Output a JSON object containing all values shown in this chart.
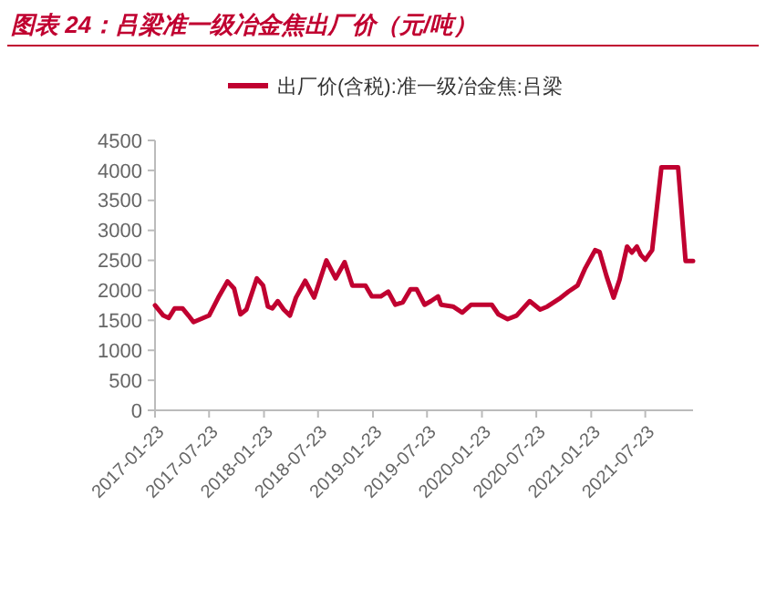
{
  "chart_data": {
    "type": "line",
    "title": "图表 24：吕梁准一级冶金焦出厂价（元/吨）",
    "x": [
      "2017-01-23",
      "2017-02-20",
      "2017-03-10",
      "2017-03-30",
      "2017-04-25",
      "2017-05-15",
      "2017-06-01",
      "2017-07-23",
      "2017-08-23",
      "2017-09-23",
      "2017-10-15",
      "2017-11-05",
      "2017-11-25",
      "2017-12-30",
      "2018-01-20",
      "2018-02-05",
      "2018-02-20",
      "2018-03-10",
      "2018-03-30",
      "2018-04-20",
      "2018-05-10",
      "2018-06-10",
      "2018-07-10",
      "2018-08-20",
      "2018-09-20",
      "2018-10-20",
      "2018-11-15",
      "2018-12-29",
      "2019-01-19",
      "2019-02-18",
      "2019-03-15",
      "2019-04-08",
      "2019-05-03",
      "2019-05-29",
      "2019-06-18",
      "2019-07-15",
      "2019-08-05",
      "2019-08-29",
      "2019-09-08",
      "2019-10-18",
      "2019-11-18",
      "2019-12-18",
      "2020-02-25",
      "2020-03-18",
      "2020-04-18",
      "2020-05-18",
      "2020-07-01",
      "2020-08-05",
      "2020-08-29",
      "2020-10-08",
      "2020-11-08",
      "2020-12-08",
      "2021-01-03",
      "2021-02-05",
      "2021-02-20",
      "2021-03-15",
      "2021-04-08",
      "2021-04-28",
      "2021-05-23",
      "2021-06-08",
      "2021-06-25",
      "2021-07-08",
      "2021-07-23",
      "2021-08-15",
      "2021-09-15",
      "2021-11-10",
      "2021-12-05",
      "2021-12-30"
    ],
    "series": [
      {
        "name": "出厂价(含税):准一级冶金焦:吕梁",
        "color": "#c00030",
        "values": [
          1750,
          1580,
          1540,
          1700,
          1700,
          1580,
          1470,
          1580,
          1880,
          2150,
          2030,
          1600,
          1680,
          2200,
          2080,
          1730,
          1700,
          1820,
          1680,
          1580,
          1880,
          2160,
          1880,
          2500,
          2200,
          2470,
          2080,
          2080,
          1900,
          1900,
          1980,
          1760,
          1800,
          2020,
          2020,
          1760,
          1820,
          1900,
          1760,
          1730,
          1630,
          1760,
          1760,
          1600,
          1520,
          1580,
          1820,
          1680,
          1730,
          1860,
          1980,
          2080,
          2370,
          2670,
          2640,
          2240,
          1880,
          2180,
          2730,
          2630,
          2730,
          2590,
          2510,
          2670,
          4050,
          4050,
          2490,
          2490
        ]
      }
    ],
    "xlim": [
      "2017-01-23",
      "2021-12-30"
    ],
    "xticks": [
      {
        "value": "2017-01-23",
        "label": "2017-01-23"
      },
      {
        "value": "2017-07-23",
        "label": "2017-07-23"
      },
      {
        "value": "2018-01-23",
        "label": "2018-01-23"
      },
      {
        "value": "2018-07-23",
        "label": "2018-07-23"
      },
      {
        "value": "2019-01-23",
        "label": "2019-01-23"
      },
      {
        "value": "2019-07-23",
        "label": "2019-07-23"
      },
      {
        "value": "2020-01-23",
        "label": "2020-01-23"
      },
      {
        "value": "2020-07-23",
        "label": "2020-07-23"
      },
      {
        "value": "2021-01-23",
        "label": "2021-01-23"
      },
      {
        "value": "2021-07-23",
        "label": "2021-07-23"
      }
    ],
    "ylim": [
      0,
      4500
    ],
    "yticks": [
      0,
      500,
      1000,
      1500,
      2000,
      2500,
      3000,
      3500,
      4000,
      4500
    ],
    "grid": false,
    "legend": "top",
    "marker": "none",
    "line_style": "solid"
  }
}
